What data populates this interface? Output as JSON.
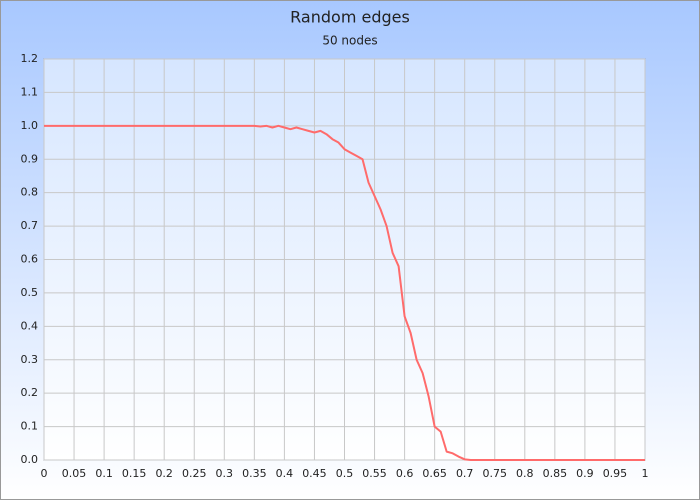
{
  "chart_data": {
    "type": "line",
    "title": "Random edges",
    "subtitle": "50 nodes",
    "x": [
      0,
      0.01,
      0.02,
      0.03,
      0.04,
      0.05,
      0.06,
      0.07,
      0.08,
      0.09,
      0.1,
      0.11,
      0.12,
      0.13,
      0.14,
      0.15,
      0.16,
      0.17,
      0.18,
      0.19,
      0.2,
      0.21,
      0.22,
      0.23,
      0.24,
      0.25,
      0.26,
      0.27,
      0.28,
      0.29,
      0.3,
      0.31,
      0.32,
      0.33,
      0.34,
      0.35,
      0.36,
      0.37,
      0.38,
      0.39,
      0.4,
      0.41,
      0.42,
      0.43,
      0.44,
      0.45,
      0.46,
      0.47,
      0.48,
      0.49,
      0.5,
      0.51,
      0.52,
      0.53,
      0.54,
      0.55,
      0.56,
      0.57,
      0.58,
      0.59,
      0.6,
      0.61,
      0.62,
      0.63,
      0.64,
      0.65,
      0.66,
      0.67,
      0.68,
      0.69,
      0.7,
      0.71,
      0.72,
      0.73,
      0.74,
      0.75,
      0.76,
      0.77,
      0.78,
      0.79,
      0.8,
      0.81,
      0.82,
      0.83,
      0.84,
      0.85,
      0.86,
      0.87,
      0.88,
      0.89,
      0.9,
      0.91,
      0.92,
      0.93,
      0.94,
      0.95,
      0.96,
      0.97,
      0.98,
      0.99,
      1
    ],
    "values": [
      1,
      1,
      1,
      1,
      1,
      1,
      1,
      1,
      1,
      1,
      1,
      1,
      1,
      1,
      1,
      1,
      1,
      1,
      1,
      1,
      1,
      1,
      1,
      1,
      1,
      1,
      1,
      1,
      1,
      1,
      1,
      1,
      1,
      1,
      1,
      1,
      0.998,
      1,
      0.995,
      1,
      0.995,
      0.99,
      0.995,
      0.99,
      0.985,
      0.98,
      0.985,
      0.975,
      0.96,
      0.95,
      0.93,
      0.92,
      0.91,
      0.9,
      0.83,
      0.79,
      0.75,
      0.7,
      0.62,
      0.58,
      0.43,
      0.38,
      0.3,
      0.26,
      0.19,
      0.1,
      0.085,
      0.025,
      0.02,
      0.01,
      0.002,
      0,
      0,
      0,
      0,
      0,
      0,
      0,
      0,
      0,
      0,
      0,
      0,
      0,
      0,
      0,
      0,
      0,
      0,
      0,
      0,
      0,
      0,
      0,
      0,
      0,
      0,
      0,
      0,
      0,
      0
    ],
    "color": "#ff6b6b",
    "xlim": [
      0,
      1
    ],
    "xticks": [
      0,
      0.05,
      0.1,
      0.15,
      0.2,
      0.25,
      0.3,
      0.35,
      0.4,
      0.45,
      0.5,
      0.55,
      0.6,
      0.65,
      0.7,
      0.75,
      0.8,
      0.85,
      0.9,
      0.95,
      1
    ],
    "ylim": [
      0,
      1.2
    ],
    "yticks": [
      {
        "value": 0,
        "label": "0.0"
      },
      0.1,
      0.2,
      0.3,
      0.4,
      0.5,
      0.6,
      0.7,
      0.8,
      0.9,
      {
        "value": 1,
        "label": "1.0"
      },
      1.1,
      1.2
    ],
    "grid": true
  }
}
